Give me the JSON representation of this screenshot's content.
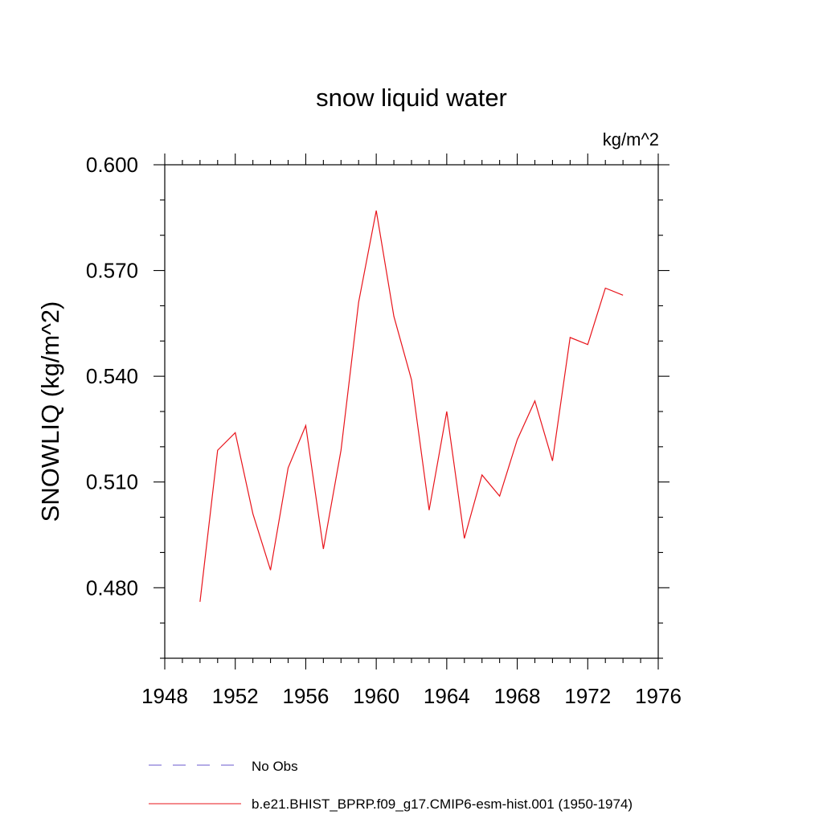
{
  "chart_data": {
    "type": "line",
    "title": "snow liquid water",
    "units_label": "kg/m^2",
    "ylabel": "SNOWLIQ  (kg/m^2)",
    "xlabel": "",
    "xlim": [
      1948,
      1976
    ],
    "ylim": [
      0.46,
      0.6
    ],
    "x_ticks": [
      "1948",
      "1952",
      "1956",
      "1960",
      "1964",
      "1968",
      "1972",
      "1976"
    ],
    "y_ticks": [
      "0.480",
      "0.510",
      "0.540",
      "0.570",
      "0.600"
    ],
    "grid": false,
    "legend_position": "bottom",
    "series": [
      {
        "name": "No Obs",
        "color": "#6a5acd",
        "dash": "dashed",
        "x": [],
        "values": []
      },
      {
        "name": "b.e21.BHIST_BPRP.f09_g17.CMIP6-esm-hist.001 (1950-1974)",
        "color": "#e8141b",
        "dash": "solid",
        "x": [
          1950,
          1951,
          1952,
          1953,
          1954,
          1955,
          1956,
          1957,
          1958,
          1959,
          1960,
          1961,
          1962,
          1963,
          1964,
          1965,
          1966,
          1967,
          1968,
          1969,
          1970,
          1971,
          1972,
          1973,
          1974
        ],
        "values": [
          0.476,
          0.519,
          0.524,
          0.501,
          0.485,
          0.514,
          0.526,
          0.491,
          0.519,
          0.561,
          0.587,
          0.557,
          0.539,
          0.502,
          0.53,
          0.494,
          0.512,
          0.506,
          0.522,
          0.533,
          0.516,
          0.551,
          0.549,
          0.565,
          0.563
        ]
      }
    ]
  }
}
